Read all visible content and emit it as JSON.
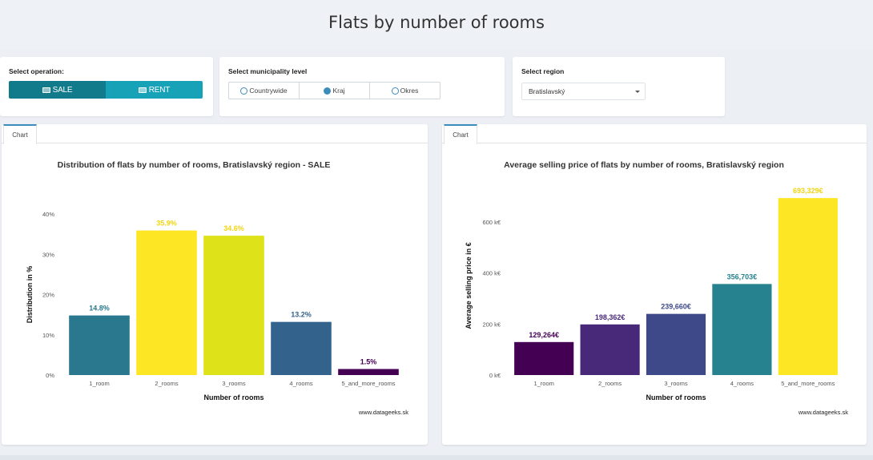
{
  "page": {
    "title": "Flats by number of rooms"
  },
  "operation": {
    "label": "Select operation:",
    "buttons": [
      {
        "label": "SALE",
        "icon": "tag-icon",
        "selected": true
      },
      {
        "label": "RENT",
        "icon": "calendar-icon",
        "selected": false
      }
    ]
  },
  "municipality": {
    "label": "Select municipality level",
    "options": [
      {
        "label": "Countrywide",
        "selected": false
      },
      {
        "label": "Kraj",
        "selected": true
      },
      {
        "label": "Okres",
        "selected": false
      }
    ]
  },
  "region": {
    "label": "Select region",
    "value": "Bratislavský"
  },
  "colors": {
    "accent": "#3c8dbc",
    "sale": "#117a8b",
    "rent": "#17a2b8",
    "background": "#ecf0f5"
  },
  "chart_data": [
    {
      "type": "bar",
      "tab": "Chart",
      "title": "Distribution of flats by number of rooms, Bratislavský region - SALE",
      "xlabel": "Number of rooms",
      "ylabel": "Distribution in %",
      "categories": [
        "1_room",
        "2_rooms",
        "3_rooms",
        "4_rooms",
        "5_and_more_rooms"
      ],
      "values": [
        14.8,
        35.9,
        34.6,
        13.2,
        1.5
      ],
      "value_labels": [
        "14.8%",
        "35.9%",
        "34.6%",
        "13.2%",
        "1.5%"
      ],
      "ylim": [
        0,
        40
      ],
      "yticks": [
        0,
        10,
        20,
        30,
        40
      ],
      "ytick_labels": [
        "0%",
        "10%",
        "20%",
        "30%",
        "40%"
      ],
      "bar_colors": [
        "#2a788e",
        "#fde725",
        "#dde318",
        "#33638d",
        "#440154"
      ],
      "grid": false,
      "credit": "www.datageeks.sk"
    },
    {
      "type": "bar",
      "tab": "Chart",
      "title": "Average selling price of flats by number of rooms, Bratislavský region",
      "xlabel": "Number of rooms",
      "ylabel": "Average selling price in €",
      "categories": [
        "1_room",
        "2_rooms",
        "3_rooms",
        "4_rooms",
        "5_and_more_rooms"
      ],
      "values": [
        129264,
        198362,
        239660,
        356703,
        693329
      ],
      "value_labels": [
        "129,264€",
        "198,362€",
        "239,660€",
        "356,703€",
        "693,329€"
      ],
      "ylim": [
        0,
        700000
      ],
      "yticks": [
        0,
        200000,
        400000,
        600000
      ],
      "ytick_labels": [
        "0 k€",
        "200 k€",
        "400 k€",
        "600 k€"
      ],
      "bar_colors": [
        "#440154",
        "#482878",
        "#3e4989",
        "#26828e",
        "#fde725"
      ],
      "grid": false,
      "credit": "www.datageeks.sk"
    }
  ]
}
